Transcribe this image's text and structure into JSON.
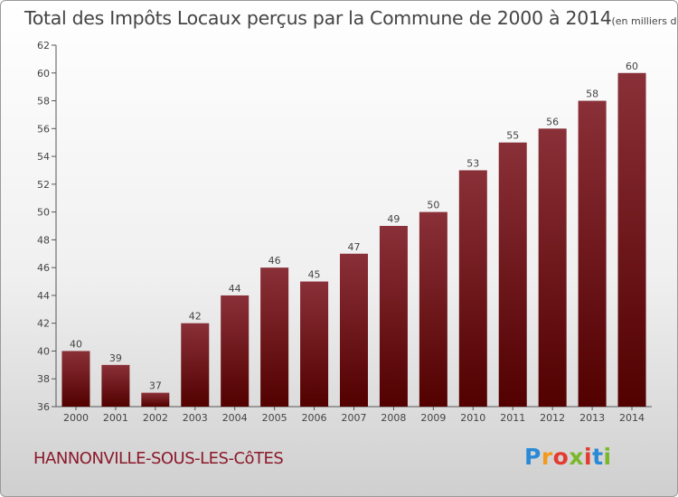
{
  "chart_title": "Total des Impôts Locaux perçus par la Commune de 2000 à 2014",
  "chart_unit": "(en milliers d'€)",
  "commune": "HANNONVILLE-SOUS-LES-CôTES",
  "logo": {
    "letters": [
      "P",
      "r",
      "o",
      "x",
      "i",
      "t",
      "i"
    ],
    "colors": [
      "#2a8ad6",
      "#f29a1e",
      "#e43a2f",
      "#7ab829",
      "#e43a2f",
      "#2a8ad6",
      "#7ab829"
    ]
  },
  "colors": {
    "bar_top": "#8a3038",
    "bar_bottom": "#520000",
    "axis": "#555555",
    "text": "#444444"
  },
  "chart_data": {
    "type": "bar",
    "categories": [
      "2000",
      "2001",
      "2002",
      "2003",
      "2004",
      "2005",
      "2006",
      "2007",
      "2008",
      "2009",
      "2010",
      "2011",
      "2012",
      "2013",
      "2014"
    ],
    "values": [
      40,
      39,
      37,
      42,
      44,
      46,
      45,
      47,
      49,
      50,
      53,
      55,
      56,
      58,
      60
    ],
    "ylim": [
      36,
      62
    ],
    "yticks": [
      36,
      38,
      40,
      42,
      44,
      46,
      48,
      50,
      52,
      54,
      56,
      58,
      60,
      62
    ],
    "grid": false,
    "xlabel": "",
    "ylabel": ""
  }
}
